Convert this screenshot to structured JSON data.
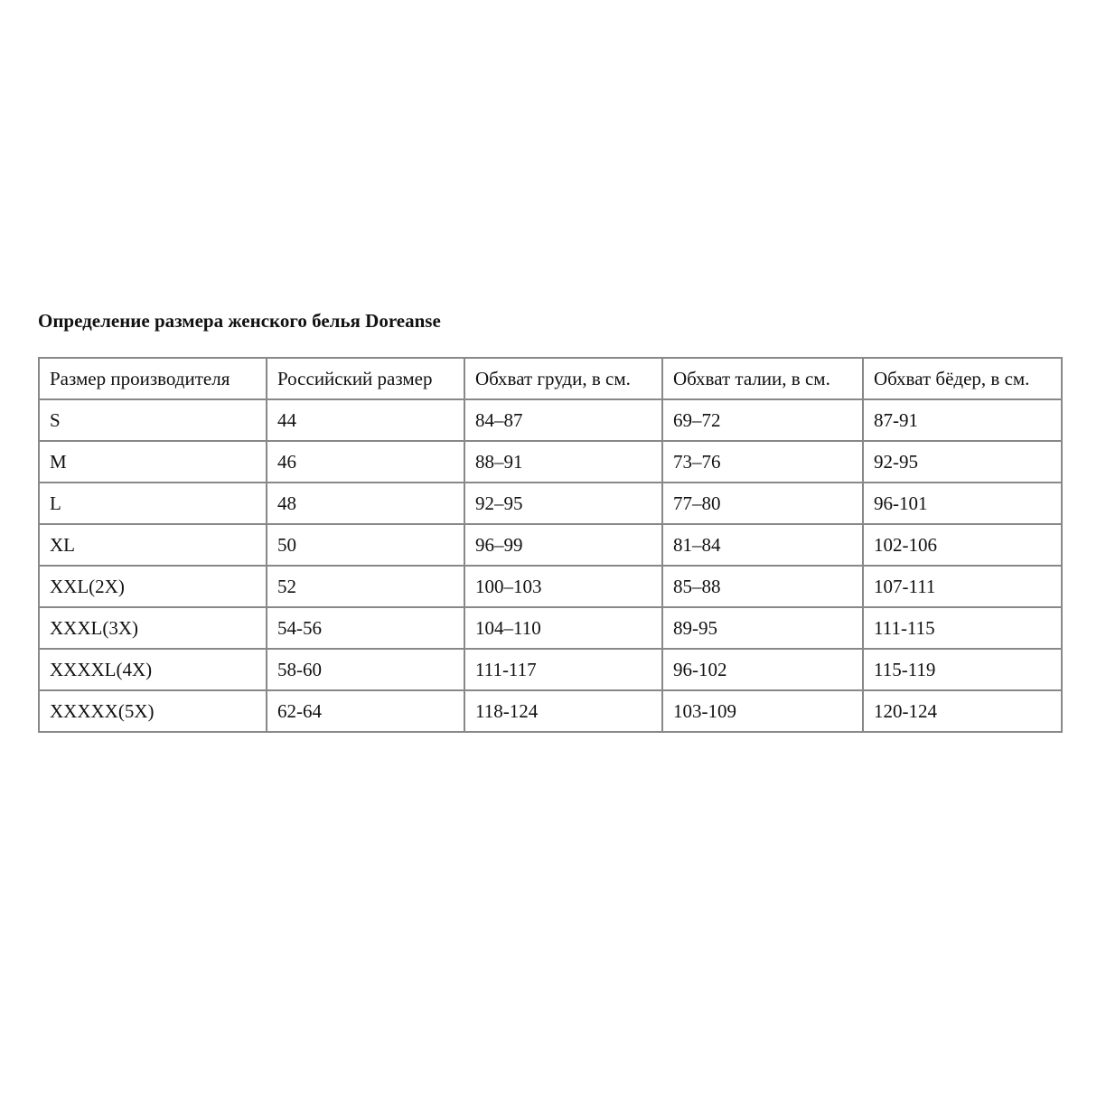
{
  "title": "Определение размера женского белья Doreanse",
  "headers": [
    "Размер производителя",
    "Российский размер",
    "Обхват груди, в см.",
    "Обхват талии, в см.",
    "Обхват бёдер, в см."
  ],
  "rows": [
    [
      "S",
      "44",
      "84–87",
      "69–72",
      "87-91"
    ],
    [
      "M",
      "46",
      "88–91",
      "73–76",
      "92-95"
    ],
    [
      "L",
      "48",
      "92–95",
      "77–80",
      "96-101"
    ],
    [
      "XL",
      "50",
      "96–99",
      "81–84",
      "102-106"
    ],
    [
      "XXL(2X)",
      "52",
      "100–103",
      "85–88",
      "107-111"
    ],
    [
      "XXXL(3X)",
      "54-56",
      "104–110",
      "89-95",
      "111-115"
    ],
    [
      "XXXXL(4X)",
      "58-60",
      "111-117",
      "96-102",
      "115-119"
    ],
    [
      "XXXXX(5X)",
      "62-64",
      "118-124",
      "103-109",
      "120-124"
    ]
  ]
}
